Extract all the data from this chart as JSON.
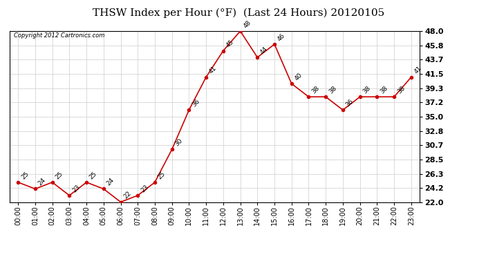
{
  "title": "THSW Index per Hour (°F)  (Last 24 Hours) 20120105",
  "copyright": "Copyright 2012 Cartronics.com",
  "hours": [
    "00:00",
    "01:00",
    "02:00",
    "03:00",
    "04:00",
    "05:00",
    "06:00",
    "07:00",
    "08:00",
    "09:00",
    "10:00",
    "11:00",
    "12:00",
    "13:00",
    "14:00",
    "15:00",
    "16:00",
    "17:00",
    "18:00",
    "19:00",
    "20:00",
    "21:00",
    "22:00",
    "23:00"
  ],
  "values": [
    25,
    24,
    25,
    23,
    25,
    24,
    22,
    23,
    25,
    30,
    36,
    41,
    45,
    48,
    44,
    46,
    40,
    38,
    38,
    36,
    38,
    38,
    38,
    41
  ],
  "ylim_min": 22.0,
  "ylim_max": 48.0,
  "yticks": [
    22.0,
    24.2,
    26.3,
    28.5,
    30.7,
    32.8,
    35.0,
    37.2,
    39.3,
    41.5,
    43.7,
    45.8,
    48.0
  ],
  "line_color": "#cc0000",
  "marker_color": "#cc0000",
  "bg_color": "#ffffff",
  "grid_color": "#cccccc",
  "title_fontsize": 11,
  "label_fontsize": 7,
  "annotation_fontsize": 6.5,
  "copyright_fontsize": 6,
  "ytick_fontsize": 8
}
